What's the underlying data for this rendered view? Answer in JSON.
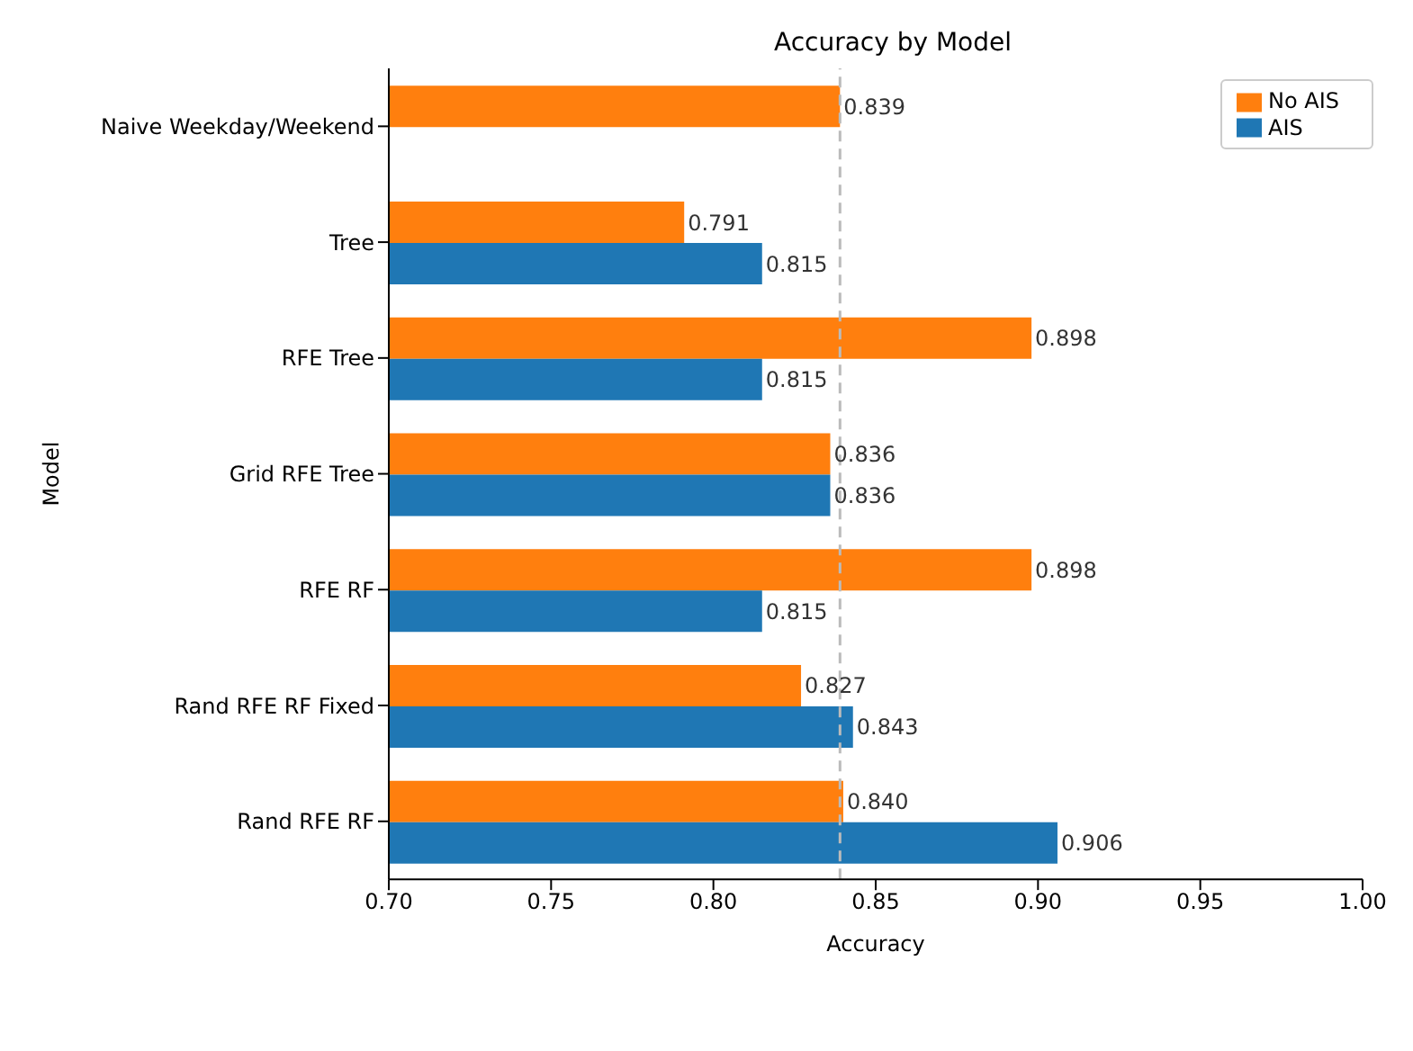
{
  "chart_data": {
    "type": "bar",
    "orientation": "horizontal",
    "title": "Accuracy by Model",
    "xlabel": "Accuracy",
    "ylabel": "Model",
    "categories": [
      "Naive Weekday/Weekend",
      "Tree",
      "RFE Tree",
      "Grid RFE Tree",
      "RFE RF",
      "Rand RFE RF Fixed",
      "Rand RFE RF"
    ],
    "series": [
      {
        "name": "No AIS",
        "color": "#ff7f0e",
        "values": [
          0.839,
          0.791,
          0.898,
          0.836,
          0.898,
          0.827,
          0.84
        ],
        "value_labels": [
          "0.839",
          "0.791",
          "0.898",
          "0.836",
          "0.898",
          "0.827",
          "0.840"
        ]
      },
      {
        "name": "AIS",
        "color": "#1f77b4",
        "values": [
          null,
          0.815,
          0.815,
          0.836,
          0.815,
          0.843,
          0.906
        ],
        "value_labels": [
          null,
          "0.815",
          "0.815",
          "0.836",
          "0.815",
          "0.843",
          "0.906"
        ]
      }
    ],
    "xlim": [
      0.7,
      1.0
    ],
    "xticks": [
      {
        "value": 0.7,
        "label": "0.70"
      },
      {
        "value": 0.75,
        "label": "0.75"
      },
      {
        "value": 0.8,
        "label": "0.80"
      },
      {
        "value": 0.85,
        "label": "0.85"
      },
      {
        "value": 0.9,
        "label": "0.90"
      },
      {
        "value": 0.95,
        "label": "0.95"
      },
      {
        "value": 1.0,
        "label": "1.00"
      }
    ],
    "ref_lines": [
      {
        "axis": "x",
        "value": 0.839,
        "color": "#bbbbbb",
        "line_style": "dashed"
      }
    ],
    "legend": "top right",
    "grid": false
  }
}
